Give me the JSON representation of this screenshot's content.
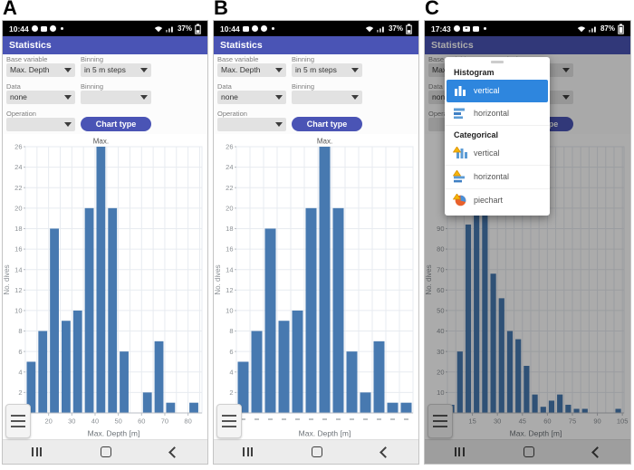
{
  "figure": {
    "panel_labels": [
      "A",
      "B",
      "C"
    ]
  },
  "colors": {
    "app_bar": "#4a54b5",
    "selected_item": "#2e86de",
    "bar": "#4779b0",
    "status_bar": "#000000"
  },
  "panels": [
    {
      "panel_label": "A",
      "status": {
        "time": "10:44",
        "battery_percent": "37%"
      },
      "app_header": "Statistics",
      "form": {
        "base_variable_label": "Base variable",
        "base_variable_value": "Max. Depth",
        "binning1_label": "Binning",
        "binning1_value": "in 5 m steps",
        "data_label": "Data",
        "data_value": "none",
        "binning2_label": "Binning",
        "binning2_value": "",
        "operation_label": "Operation",
        "operation_value": "",
        "chart_type_button": "Chart type"
      },
      "chart_data": {
        "type": "bar",
        "xlabel": "Max. Depth [m]",
        "ylabel": "No. dives",
        "bin_start": 10,
        "bin_width": 5,
        "xlim": [
          10,
          86
        ],
        "xticks": [
          10,
          20,
          30,
          40,
          50,
          60,
          70,
          80
        ],
        "ylim": [
          0,
          26
        ],
        "ytick_step": 2,
        "values": [
          5,
          8,
          18,
          9,
          10,
          20,
          26,
          20,
          6,
          0,
          2,
          7,
          1,
          0,
          1
        ],
        "bar_color": "#4779b0",
        "grid": true,
        "annotation": {
          "text": "Max.",
          "bar_index": 6
        }
      }
    },
    {
      "panel_label": "B",
      "status": {
        "time": "10:44",
        "battery_percent": "37%"
      },
      "app_header": "Statistics",
      "form": {
        "base_variable_label": "Base variable",
        "base_variable_value": "Max. Depth",
        "binning1_label": "Binning",
        "binning1_value": "in 5 m steps",
        "data_label": "Data",
        "data_value": "none",
        "binning2_label": "Binning",
        "binning2_value": "",
        "operation_label": "Operation",
        "operation_value": "",
        "chart_type_button": "Chart type"
      },
      "chart_data": {
        "type": "bar",
        "xlabel": "Max. Depth [m]",
        "ylabel": "No. dives",
        "categories": [
          "10-15",
          "15-20",
          "20-25",
          "25-30",
          "30-35",
          "35-40",
          "40-45",
          "45-50",
          "50-55",
          "60-65",
          "65-70",
          "70-75",
          "80-85"
        ],
        "xtick_style": "dash",
        "ylim": [
          0,
          26
        ],
        "ytick_step": 2,
        "values": [
          5,
          8,
          18,
          9,
          10,
          20,
          26,
          20,
          6,
          2,
          7,
          1,
          1
        ],
        "bar_color": "#4779b0",
        "grid": true,
        "annotation": {
          "text": "Max.",
          "bar_index": 6
        }
      }
    },
    {
      "panel_label": "C",
      "status": {
        "time": "17:43",
        "battery_percent": "87%"
      },
      "app_header": "Statistics",
      "form": {
        "base_variable_label": "Base variable",
        "base_variable_value": "Max. Depth",
        "binning1_label": "Binning",
        "binning1_value": "in 5 m steps",
        "data_label": "Data",
        "data_value": "none",
        "binning2_label": "Binning",
        "binning2_value": "",
        "operation_label": "Operation",
        "operation_value": "",
        "chart_type_button": "Chart type"
      },
      "chart_data": {
        "type": "bar",
        "xlabel": "Max. Depth [m]",
        "ylabel": "No. dives",
        "bin_start": 0,
        "bin_width": 5,
        "xlim": [
          0,
          106
        ],
        "xticks": [
          0,
          15,
          30,
          45,
          60,
          75,
          90,
          105
        ],
        "ylim": [
          0,
          130
        ],
        "ytick_step": 10,
        "ytick_max": 90,
        "values": [
          4,
          30,
          92,
          120,
          100,
          68,
          56,
          40,
          36,
          23,
          9,
          3,
          6,
          9,
          4,
          2,
          2,
          0,
          0,
          0,
          2
        ],
        "bar_color": "#4779b0",
        "grid": true
      },
      "popup": {
        "sections": [
          {
            "title": "Histogram",
            "items": [
              {
                "label": "vertical",
                "selected": true
              },
              {
                "label": "horizontal",
                "selected": false
              }
            ]
          },
          {
            "title": "Categorical",
            "items": [
              {
                "label": "vertical",
                "selected": false
              },
              {
                "label": "horizontal",
                "selected": false
              },
              {
                "label": "piechart",
                "selected": false
              }
            ]
          }
        ]
      }
    }
  ]
}
